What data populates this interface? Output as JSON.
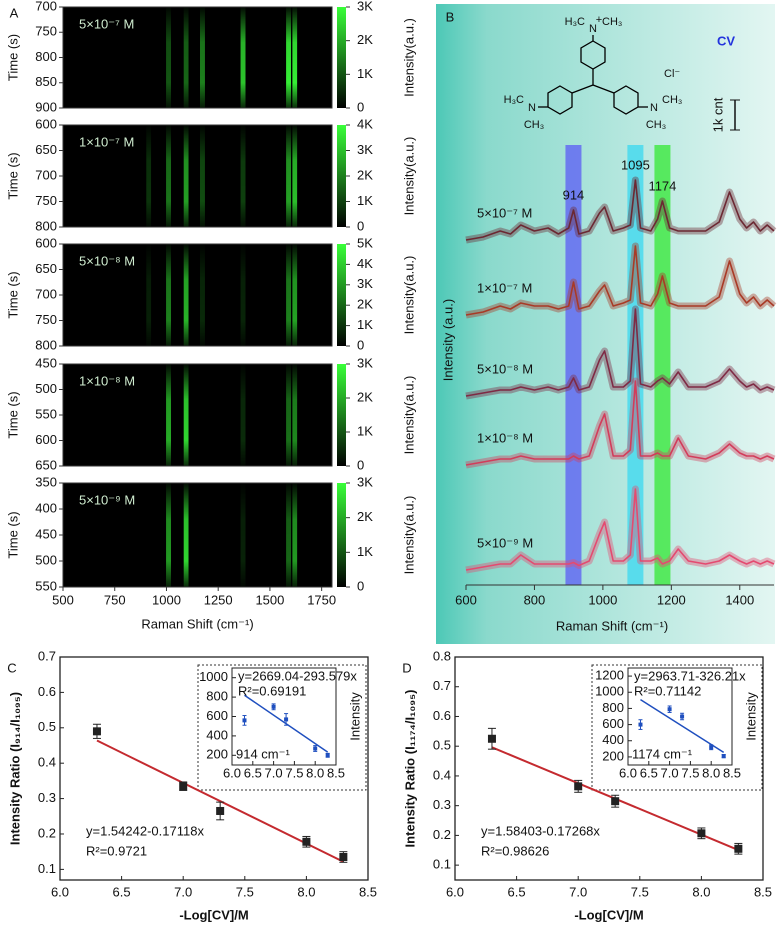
{
  "chart_data": [
    {
      "type": "heatmap",
      "panel": "A",
      "label": "5×10⁻⁷ M",
      "ylabel": "Time (s)",
      "ylim": [
        900,
        700
      ],
      "yticks": [
        700,
        750,
        800,
        850,
        900
      ],
      "xlim": [
        500,
        1800
      ],
      "x": [
        1010,
        1095,
        1174,
        1370,
        1590,
        1620
      ],
      "values": [
        1000,
        1200,
        1500,
        2300,
        2800,
        2800
      ],
      "color": "#39ff39",
      "clim": [
        0,
        3000
      ],
      "cticks": [
        0,
        {
          "value": 1000,
          "label": "1K"
        },
        {
          "value": 2000,
          "label": "2K"
        },
        {
          "value": 3000,
          "label": "3K"
        }
      ],
      "clabel": "Intensity(a.u.)"
    },
    {
      "type": "heatmap",
      "label": "1×10⁻⁷ M",
      "ylabel": "Time (s)",
      "ylim": [
        800,
        600
      ],
      "yticks": [
        600,
        650,
        700,
        750,
        800
      ],
      "xlim": [
        500,
        1800
      ],
      "x": [
        914,
        1010,
        1095,
        1174,
        1370,
        1590,
        1620
      ],
      "values": [
        800,
        1800,
        2500,
        1200,
        1000,
        2500,
        3000
      ],
      "color": "#39ff39",
      "clim": [
        0,
        4000
      ],
      "cticks": [
        0,
        {
          "value": 1000,
          "label": "1K"
        },
        {
          "value": 2000,
          "label": "2K"
        },
        {
          "value": 3000,
          "label": "3K"
        },
        {
          "value": 4000,
          "label": "4K"
        }
      ],
      "clabel": "Intensity(a.u.)"
    },
    {
      "type": "heatmap",
      "label": "5×10⁻⁸ M",
      "ylabel": "Time (s)",
      "ylim": [
        800,
        600
      ],
      "yticks": [
        600,
        650,
        700,
        750,
        800
      ],
      "xlim": [
        500,
        1800
      ],
      "x": [
        914,
        1010,
        1095,
        1174,
        1370,
        1590,
        1620
      ],
      "values": [
        600,
        2500,
        3500,
        800,
        700,
        2500,
        3200
      ],
      "color": "#39ff39",
      "clim": [
        0,
        5000
      ],
      "cticks": [
        0,
        {
          "value": 1000,
          "label": "1K"
        },
        {
          "value": 2000,
          "label": "2K"
        },
        {
          "value": 3000,
          "label": "3K"
        },
        {
          "value": 4000,
          "label": "4K"
        },
        {
          "value": 5000,
          "label": "5K"
        }
      ],
      "clabel": "Intensity(a.u.)"
    },
    {
      "type": "heatmap",
      "label": "1×10⁻⁸ M",
      "ylabel": "Time (s)",
      "ylim": [
        650,
        450
      ],
      "yticks": [
        450,
        500,
        550,
        600,
        650
      ],
      "xlim": [
        500,
        1800
      ],
      "x": [
        1010,
        1095,
        1370,
        1590,
        1620
      ],
      "values": [
        2000,
        2500,
        500,
        1300,
        1600
      ],
      "color": "#39ff39",
      "clim": [
        0,
        3000
      ],
      "cticks": [
        0,
        {
          "value": 1000,
          "label": "1K"
        },
        {
          "value": 2000,
          "label": "2K"
        },
        {
          "value": 3000,
          "label": "3K"
        }
      ],
      "clabel": "Intensity(a.u.)"
    },
    {
      "type": "heatmap",
      "label": "5×10⁻⁹ M",
      "ylabel": "Time (s)",
      "ylim": [
        550,
        350
      ],
      "yticks": [
        350,
        400,
        450,
        500,
        550
      ],
      "xlim": [
        500,
        1800
      ],
      "xticks": [
        500,
        750,
        1000,
        1250,
        1500,
        1750
      ],
      "xlabel": "Raman Shift (cm⁻¹)",
      "x": [
        1010,
        1095,
        1370,
        1590,
        1620
      ],
      "values": [
        1800,
        2500,
        400,
        1200,
        1800
      ],
      "color": "#39ff39",
      "clim": [
        0,
        3000
      ],
      "cticks": [
        0,
        {
          "value": 1000,
          "label": "1K"
        },
        {
          "value": 2000,
          "label": "2K"
        },
        {
          "value": 3000,
          "label": "3K"
        }
      ],
      "clabel": "Intensity(a.u.)"
    },
    {
      "type": "line",
      "panel": "B",
      "title": "CV",
      "xlabel": "Raman Shift (cm⁻¹)",
      "ylabel": "Intensity (a.u.)",
      "xlim": [
        600,
        1500
      ],
      "xticks": [
        600,
        800,
        1000,
        1200,
        1400
      ],
      "ylim": [
        0,
        14500
      ],
      "x": [
        600,
        650,
        700,
        730,
        760,
        800,
        840,
        870,
        900,
        914,
        930,
        960,
        990,
        1005,
        1030,
        1060,
        1080,
        1095,
        1110,
        1140,
        1160,
        1174,
        1195,
        1220,
        1250,
        1300,
        1340,
        1370,
        1400,
        1420,
        1440,
        1460,
        1480,
        1500
      ],
      "series": [
        {
          "name": "5×10⁻⁷ M",
          "color": "#6b2832",
          "values": [
            11500,
            11600,
            11800,
            11700,
            12000,
            11800,
            11900,
            11700,
            11900,
            12500,
            11700,
            11800,
            12400,
            12600,
            11800,
            11900,
            12000,
            13500,
            11900,
            11800,
            12200,
            12800,
            11900,
            11800,
            11800,
            11800,
            12100,
            13100,
            12200,
            11900,
            12100,
            11800,
            12000,
            11800
          ]
        },
        {
          "name": "1×10⁻⁷ M",
          "color": "#a83a26",
          "values": [
            9000,
            9100,
            9300,
            9200,
            9400,
            9300,
            9300,
            9200,
            9300,
            10100,
            9200,
            9300,
            9800,
            10000,
            9300,
            9400,
            9500,
            11300,
            9400,
            9300,
            9700,
            10300,
            9400,
            9300,
            9300,
            9300,
            9600,
            10800,
            9700,
            9400,
            9600,
            9300,
            9500,
            9300
          ]
        },
        {
          "name": "5×10⁻⁸ M",
          "color": "#7e2a44",
          "values": [
            6300,
            6400,
            6500,
            6500,
            6600,
            6500,
            6600,
            6500,
            6600,
            6900,
            6500,
            6600,
            7500,
            7800,
            6600,
            6600,
            6800,
            9200,
            6700,
            6600,
            6800,
            6900,
            6700,
            7100,
            6600,
            6600,
            6800,
            7200,
            6800,
            6600,
            6700,
            6500,
            6600,
            6500
          ]
        },
        {
          "name": "1×10⁻⁸ M",
          "color": "#d23c5a",
          "values": [
            4000,
            4100,
            4200,
            4200,
            4300,
            4200,
            4200,
            4200,
            4200,
            4300,
            4200,
            4300,
            5300,
            5700,
            4300,
            4300,
            4500,
            6800,
            4300,
            4300,
            4400,
            4300,
            4300,
            4900,
            4300,
            4200,
            4400,
            4700,
            4400,
            4300,
            4300,
            4200,
            4300,
            4200
          ]
        },
        {
          "name": "5×10⁻⁹ M",
          "color": "#e44a70",
          "values": [
            500,
            600,
            700,
            700,
            1000,
            700,
            700,
            700,
            700,
            750,
            650,
            800,
            1700,
            2100,
            800,
            800,
            1000,
            3200,
            800,
            800,
            900,
            700,
            800,
            1200,
            800,
            700,
            800,
            1000,
            800,
            700,
            800,
            700,
            800,
            700
          ]
        }
      ],
      "highlights": [
        {
          "x": 914,
          "color": "#5b5bf5"
        },
        {
          "x": 1095,
          "color": "#38d8f0"
        },
        {
          "x": 1174,
          "color": "#33e833"
        }
      ],
      "scale_bar": {
        "value": 1000,
        "label": "1k cnt"
      },
      "structure": [
        "N",
        "+",
        "H₃C",
        "CH₃",
        "Cl⁻",
        "N",
        "H₃C",
        "CH₃",
        "N",
        "CH₃",
        "CH₃"
      ]
    },
    {
      "type": "scatter",
      "panel": "C",
      "xlabel": "-Log[CV]/M",
      "ylabel": "Intensity Ratio (I₉₁₄/I₁₀₉₅)",
      "xlim": [
        6.0,
        8.5
      ],
      "xticks": [
        {
          "value": 6,
          "label": "6.0"
        },
        6.5,
        {
          "value": 7,
          "label": "7.0"
        },
        7.5,
        {
          "value": 8,
          "label": "8.0"
        },
        8.5
      ],
      "ylim": [
        0.07,
        0.7
      ],
      "yticks": [
        0.1,
        0.2,
        0.3,
        0.4,
        0.5,
        0.6,
        0.7
      ],
      "x": [
        6.3,
        7,
        7.3,
        8,
        8.3
      ],
      "values": [
        0.49,
        0.335,
        0.265,
        0.178,
        0.135
      ],
      "errors": [
        0.02,
        0.012,
        0.025,
        0.015,
        0.015
      ],
      "color": "#222222",
      "fit": {
        "x": [
          6.3,
          8.3
        ],
        "y": [
          0.464,
          0.1216
        ],
        "color": "#c42a2f"
      },
      "equation": "y=1.54242-0.17118x",
      "r2": "R²=0.9721",
      "inset": {
        "type": "scatter",
        "xlim": [
          6.0,
          8.5
        ],
        "xticks": [
          {
            "value": 6,
            "label": "6.0"
          },
          6.5,
          {
            "value": 7,
            "label": "7.0"
          },
          7.5,
          {
            "value": 8,
            "label": "8.0"
          },
          8.5
        ],
        "ylim": [
          100,
          1100
        ],
        "yticks": [
          200,
          400,
          600,
          800,
          1000
        ],
        "ylabel": "Intensity",
        "x": [
          6.3,
          7,
          7.3,
          8,
          8.3
        ],
        "values": [
          560,
          700,
          570,
          270,
          200
        ],
        "errors": [
          50,
          30,
          60,
          30,
          20
        ],
        "color": "#1f4fbf",
        "fit": {
          "x": [
            6.3,
            8.3
          ],
          "y": [
            819.5,
            232.3
          ],
          "color": "#1f4fbf"
        },
        "equation": "y=2669.04-293.579x",
        "r2": "R²=0.69191",
        "note": "914 cm⁻¹"
      }
    },
    {
      "type": "scatter",
      "panel": "D",
      "xlabel": "-Log[CV]/M",
      "ylabel": "Intensity Ratio (I₁₁₇₄/I₁₀₉₅)",
      "xlim": [
        6.0,
        8.5
      ],
      "xticks": [
        {
          "value": 6,
          "label": "6.0"
        },
        6.5,
        {
          "value": 7,
          "label": "7.0"
        },
        7.5,
        {
          "value": 8,
          "label": "8.0"
        },
        8.5
      ],
      "ylim": [
        0.05,
        0.8
      ],
      "yticks": [
        0.1,
        0.2,
        0.3,
        0.4,
        0.5,
        0.6,
        0.7,
        0.8
      ],
      "x": [
        6.3,
        7,
        7.3,
        8,
        8.3
      ],
      "values": [
        0.525,
        0.365,
        0.315,
        0.207,
        0.155
      ],
      "errors": [
        0.035,
        0.02,
        0.02,
        0.018,
        0.018
      ],
      "color": "#222222",
      "fit": {
        "x": [
          6.3,
          8.3
        ],
        "y": [
          0.4962,
          0.1508
        ],
        "color": "#c42a2f"
      },
      "equation": "y=1.58403-0.17268x",
      "r2": "R²=0.98626",
      "inset": {
        "type": "scatter",
        "xlim": [
          6.0,
          8.5
        ],
        "xticks": [
          {
            "value": 6,
            "label": "6.0"
          },
          6.5,
          {
            "value": 7,
            "label": "7.0"
          },
          7.5,
          {
            "value": 8,
            "label": "8.0"
          },
          8.5
        ],
        "ylim": [
          100,
          1300
        ],
        "yticks": [
          200,
          400,
          600,
          800,
          1000,
          1200
        ],
        "ylabel": "Intensity",
        "x": [
          6.3,
          7,
          7.3,
          8,
          8.3
        ],
        "values": [
          600,
          790,
          700,
          320,
          210
        ],
        "errors": [
          60,
          40,
          40,
          30,
          20
        ],
        "color": "#1f4fbf",
        "fit": {
          "x": [
            6.3,
            8.3
          ],
          "y": [
            908.6,
            256.2
          ],
          "color": "#1f4fbf"
        },
        "equation": "y=2963.71-326.21x",
        "r2": "R²=0.71142",
        "note": "1174 cm⁻¹"
      }
    }
  ]
}
